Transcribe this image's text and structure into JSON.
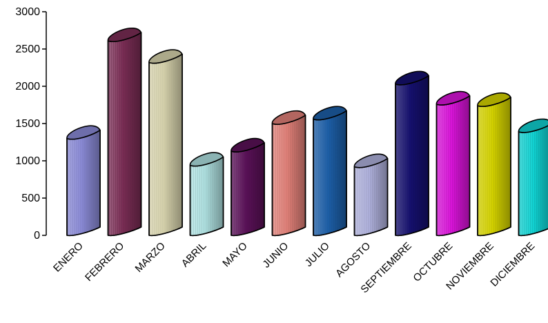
{
  "chart_data": {
    "type": "bar",
    "categories": [
      "ENERO",
      "FEBRERO",
      "MARZO",
      "ABRIL",
      "MAYO",
      "JUNIO",
      "JULIO",
      "AGOSTO",
      "SEPTIEMBRE",
      "OCTUBRE",
      "NOVIEMBRE",
      "DICIEMBRE"
    ],
    "values": [
      1300,
      2610,
      2320,
      940,
      1130,
      1500,
      1560,
      920,
      2030,
      1760,
      1740,
      1390
    ],
    "colors": [
      "#8a8ad6",
      "#7a2d55",
      "#d7d3ad",
      "#aee0e0",
      "#5a1158",
      "#e08078",
      "#1d5fa8",
      "#aeb0db",
      "#15106e",
      "#d814d8",
      "#d4d200",
      "#10d0d0"
    ],
    "ylim": [
      0,
      3000
    ],
    "yticks": [
      "0",
      "500",
      "1000",
      "1500",
      "2000",
      "2500",
      "3000"
    ],
    "grid": false,
    "legend": "none",
    "title": "",
    "xlabel": "",
    "ylabel": ""
  }
}
